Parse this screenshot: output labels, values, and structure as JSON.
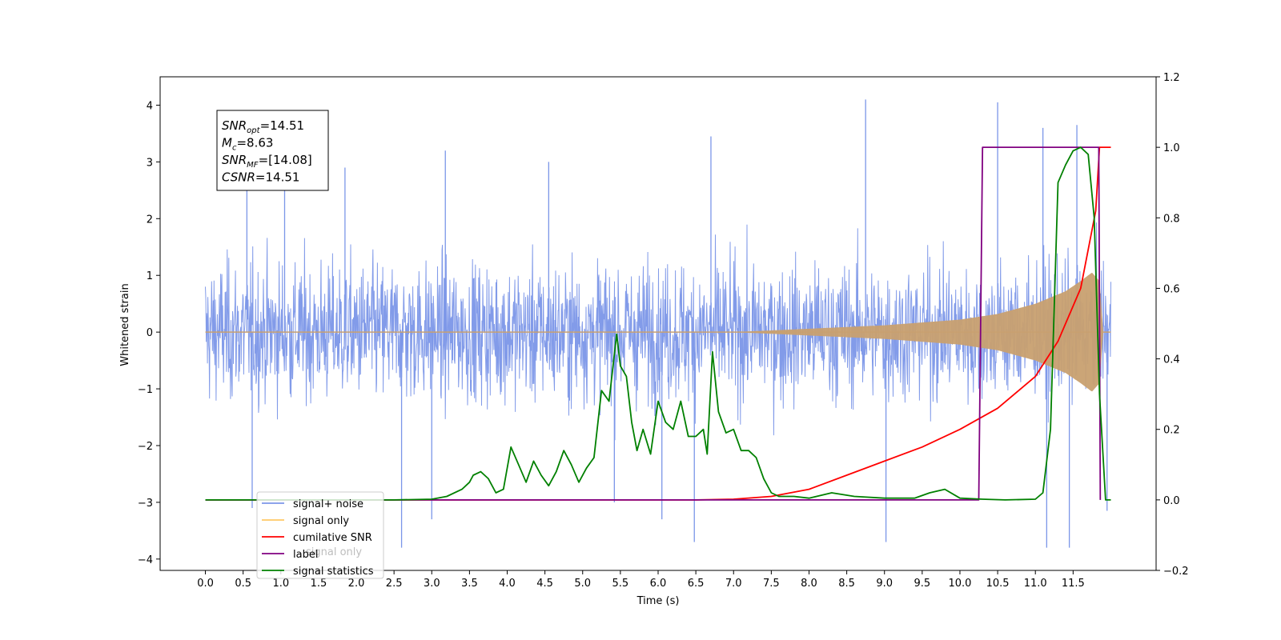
{
  "chart_data": {
    "type": "line",
    "xlabel": "Time (s)",
    "ylabel": "Whitened strain",
    "xlim": [
      -0.6,
      12.6
    ],
    "ylim": [
      -4.2,
      4.5
    ],
    "y2lim": [
      -0.2,
      1.2
    ],
    "x_ticks": [
      "0.0",
      "0.5",
      "1.0",
      "1.5",
      "2.0",
      "2.5",
      "3.0",
      "3.5",
      "4.0",
      "4.5",
      "5.0",
      "5.5",
      "6.0",
      "6.5",
      "7.0",
      "7.5",
      "8.0",
      "8.5",
      "9.0",
      "9.5",
      "10.0",
      "10.5",
      "11.0",
      "11.5"
    ],
    "y_ticks": [
      "−4",
      "−3",
      "−2",
      "−1",
      "0",
      "1",
      "2",
      "3",
      "4"
    ],
    "y2_ticks": [
      "−0.2",
      "0.0",
      "0.2",
      "0.4",
      "0.6",
      "0.8",
      "1.0",
      "1.2"
    ],
    "grid": false,
    "legend_position": "lower-left",
    "legend": [
      {
        "label": "signal+ noise",
        "color": "#7b96e8"
      },
      {
        "label": "signal only",
        "color": "#ffc966"
      },
      {
        "label": "cumilative SNR",
        "color": "#ff0000"
      },
      {
        "label": "label",
        "color": "#800080"
      },
      {
        "label": "signal statistics",
        "color": "#008000"
      }
    ],
    "hidden_legend_text": "signal only",
    "stats_box": [
      {
        "name": "SNR",
        "sub": "opt",
        "value": "=14.51"
      },
      {
        "name": "M",
        "sub": "c",
        "value": "=8.63"
      },
      {
        "name": "SNR",
        "sub": "MF",
        "value": "=[14.08]"
      },
      {
        "name": "CSNR",
        "sub": "",
        "value": "=14.51"
      }
    ],
    "series": [
      {
        "name": "signal+ noise",
        "axis": "left",
        "color": "#7b96e8",
        "x_range": [
          0.0,
          12.0
        ],
        "band_upper_typical": 1.7,
        "band_lower_typical": -1.7,
        "spikes": [
          {
            "x": 0.55,
            "y": 2.9
          },
          {
            "x": 0.62,
            "y": -3.1
          },
          {
            "x": 1.05,
            "y": 3.2
          },
          {
            "x": 1.85,
            "y": 2.9
          },
          {
            "x": 2.6,
            "y": -3.8
          },
          {
            "x": 3.0,
            "y": -3.3
          },
          {
            "x": 3.18,
            "y": 3.2
          },
          {
            "x": 4.55,
            "y": 3.0
          },
          {
            "x": 5.42,
            "y": -3.0
          },
          {
            "x": 6.05,
            "y": -3.3
          },
          {
            "x": 6.48,
            "y": -3.7
          },
          {
            "x": 6.7,
            "y": 3.45
          },
          {
            "x": 8.75,
            "y": 4.1
          },
          {
            "x": 9.02,
            "y": -3.7
          },
          {
            "x": 10.5,
            "y": 4.05
          },
          {
            "x": 11.1,
            "y": 3.6
          },
          {
            "x": 11.15,
            "y": -3.8
          },
          {
            "x": 11.45,
            "y": -3.8
          },
          {
            "x": 11.55,
            "y": 3.65
          },
          {
            "x": 11.95,
            "y": -3.15
          }
        ]
      },
      {
        "name": "signal only",
        "axis": "left",
        "color": "#c8a070",
        "x_range": [
          0.0,
          12.0
        ],
        "envelope": [
          [
            7.0,
            0.0
          ],
          [
            8.0,
            0.06
          ],
          [
            9.0,
            0.12
          ],
          [
            10.0,
            0.22
          ],
          [
            10.5,
            0.32
          ],
          [
            11.0,
            0.5
          ],
          [
            11.4,
            0.72
          ],
          [
            11.6,
            0.9
          ],
          [
            11.75,
            1.05
          ],
          [
            11.85,
            0.9
          ],
          [
            11.9,
            0.0
          ],
          [
            12.0,
            0.0
          ]
        ]
      },
      {
        "name": "cumilative SNR",
        "axis": "right",
        "color": "#ff0000",
        "x": [
          0.0,
          6.5,
          7.0,
          7.5,
          8.0,
          8.5,
          9.0,
          9.5,
          10.0,
          10.5,
          11.0,
          11.3,
          11.6,
          11.8,
          11.85,
          12.0
        ],
        "values": [
          0.0,
          0.0,
          0.002,
          0.01,
          0.03,
          0.07,
          0.11,
          0.15,
          0.2,
          0.26,
          0.35,
          0.45,
          0.6,
          0.82,
          1.0,
          1.0
        ]
      },
      {
        "name": "label",
        "axis": "right",
        "color": "#800080",
        "x": [
          0.0,
          10.25,
          10.3,
          11.84,
          11.86
        ],
        "values": [
          0.0,
          0.0,
          1.0,
          1.0,
          0.0
        ]
      },
      {
        "name": "signal statistics",
        "axis": "right",
        "color": "#008000",
        "x": [
          0.0,
          1.0,
          2.0,
          2.5,
          3.0,
          3.2,
          3.4,
          3.5,
          3.55,
          3.65,
          3.75,
          3.85,
          3.95,
          4.05,
          4.15,
          4.25,
          4.35,
          4.45,
          4.55,
          4.65,
          4.75,
          4.85,
          4.95,
          5.05,
          5.15,
          5.25,
          5.35,
          5.45,
          5.5,
          5.58,
          5.65,
          5.72,
          5.8,
          5.9,
          6.0,
          6.1,
          6.2,
          6.3,
          6.4,
          6.5,
          6.6,
          6.65,
          6.72,
          6.8,
          6.9,
          7.0,
          7.1,
          7.2,
          7.3,
          7.4,
          7.5,
          7.6,
          7.8,
          8.0,
          8.3,
          8.6,
          9.0,
          9.4,
          9.6,
          9.8,
          10.0,
          10.3,
          10.6,
          11.0,
          11.1,
          11.2,
          11.3,
          11.4,
          11.5,
          11.6,
          11.7,
          11.78,
          11.85,
          11.93,
          12.0
        ],
        "values": [
          0.0,
          0.0,
          0.0,
          0.0,
          0.002,
          0.01,
          0.03,
          0.05,
          0.07,
          0.08,
          0.06,
          0.02,
          0.03,
          0.15,
          0.1,
          0.05,
          0.11,
          0.07,
          0.04,
          0.08,
          0.14,
          0.1,
          0.05,
          0.09,
          0.12,
          0.31,
          0.28,
          0.47,
          0.38,
          0.35,
          0.22,
          0.14,
          0.2,
          0.13,
          0.28,
          0.22,
          0.2,
          0.28,
          0.18,
          0.18,
          0.2,
          0.13,
          0.42,
          0.25,
          0.19,
          0.2,
          0.14,
          0.14,
          0.12,
          0.06,
          0.02,
          0.01,
          0.01,
          0.005,
          0.02,
          0.01,
          0.005,
          0.005,
          0.02,
          0.03,
          0.005,
          0.002,
          0.0,
          0.002,
          0.02,
          0.2,
          0.9,
          0.95,
          0.99,
          1.0,
          0.98,
          0.8,
          0.3,
          0.0,
          0.0
        ]
      }
    ]
  }
}
